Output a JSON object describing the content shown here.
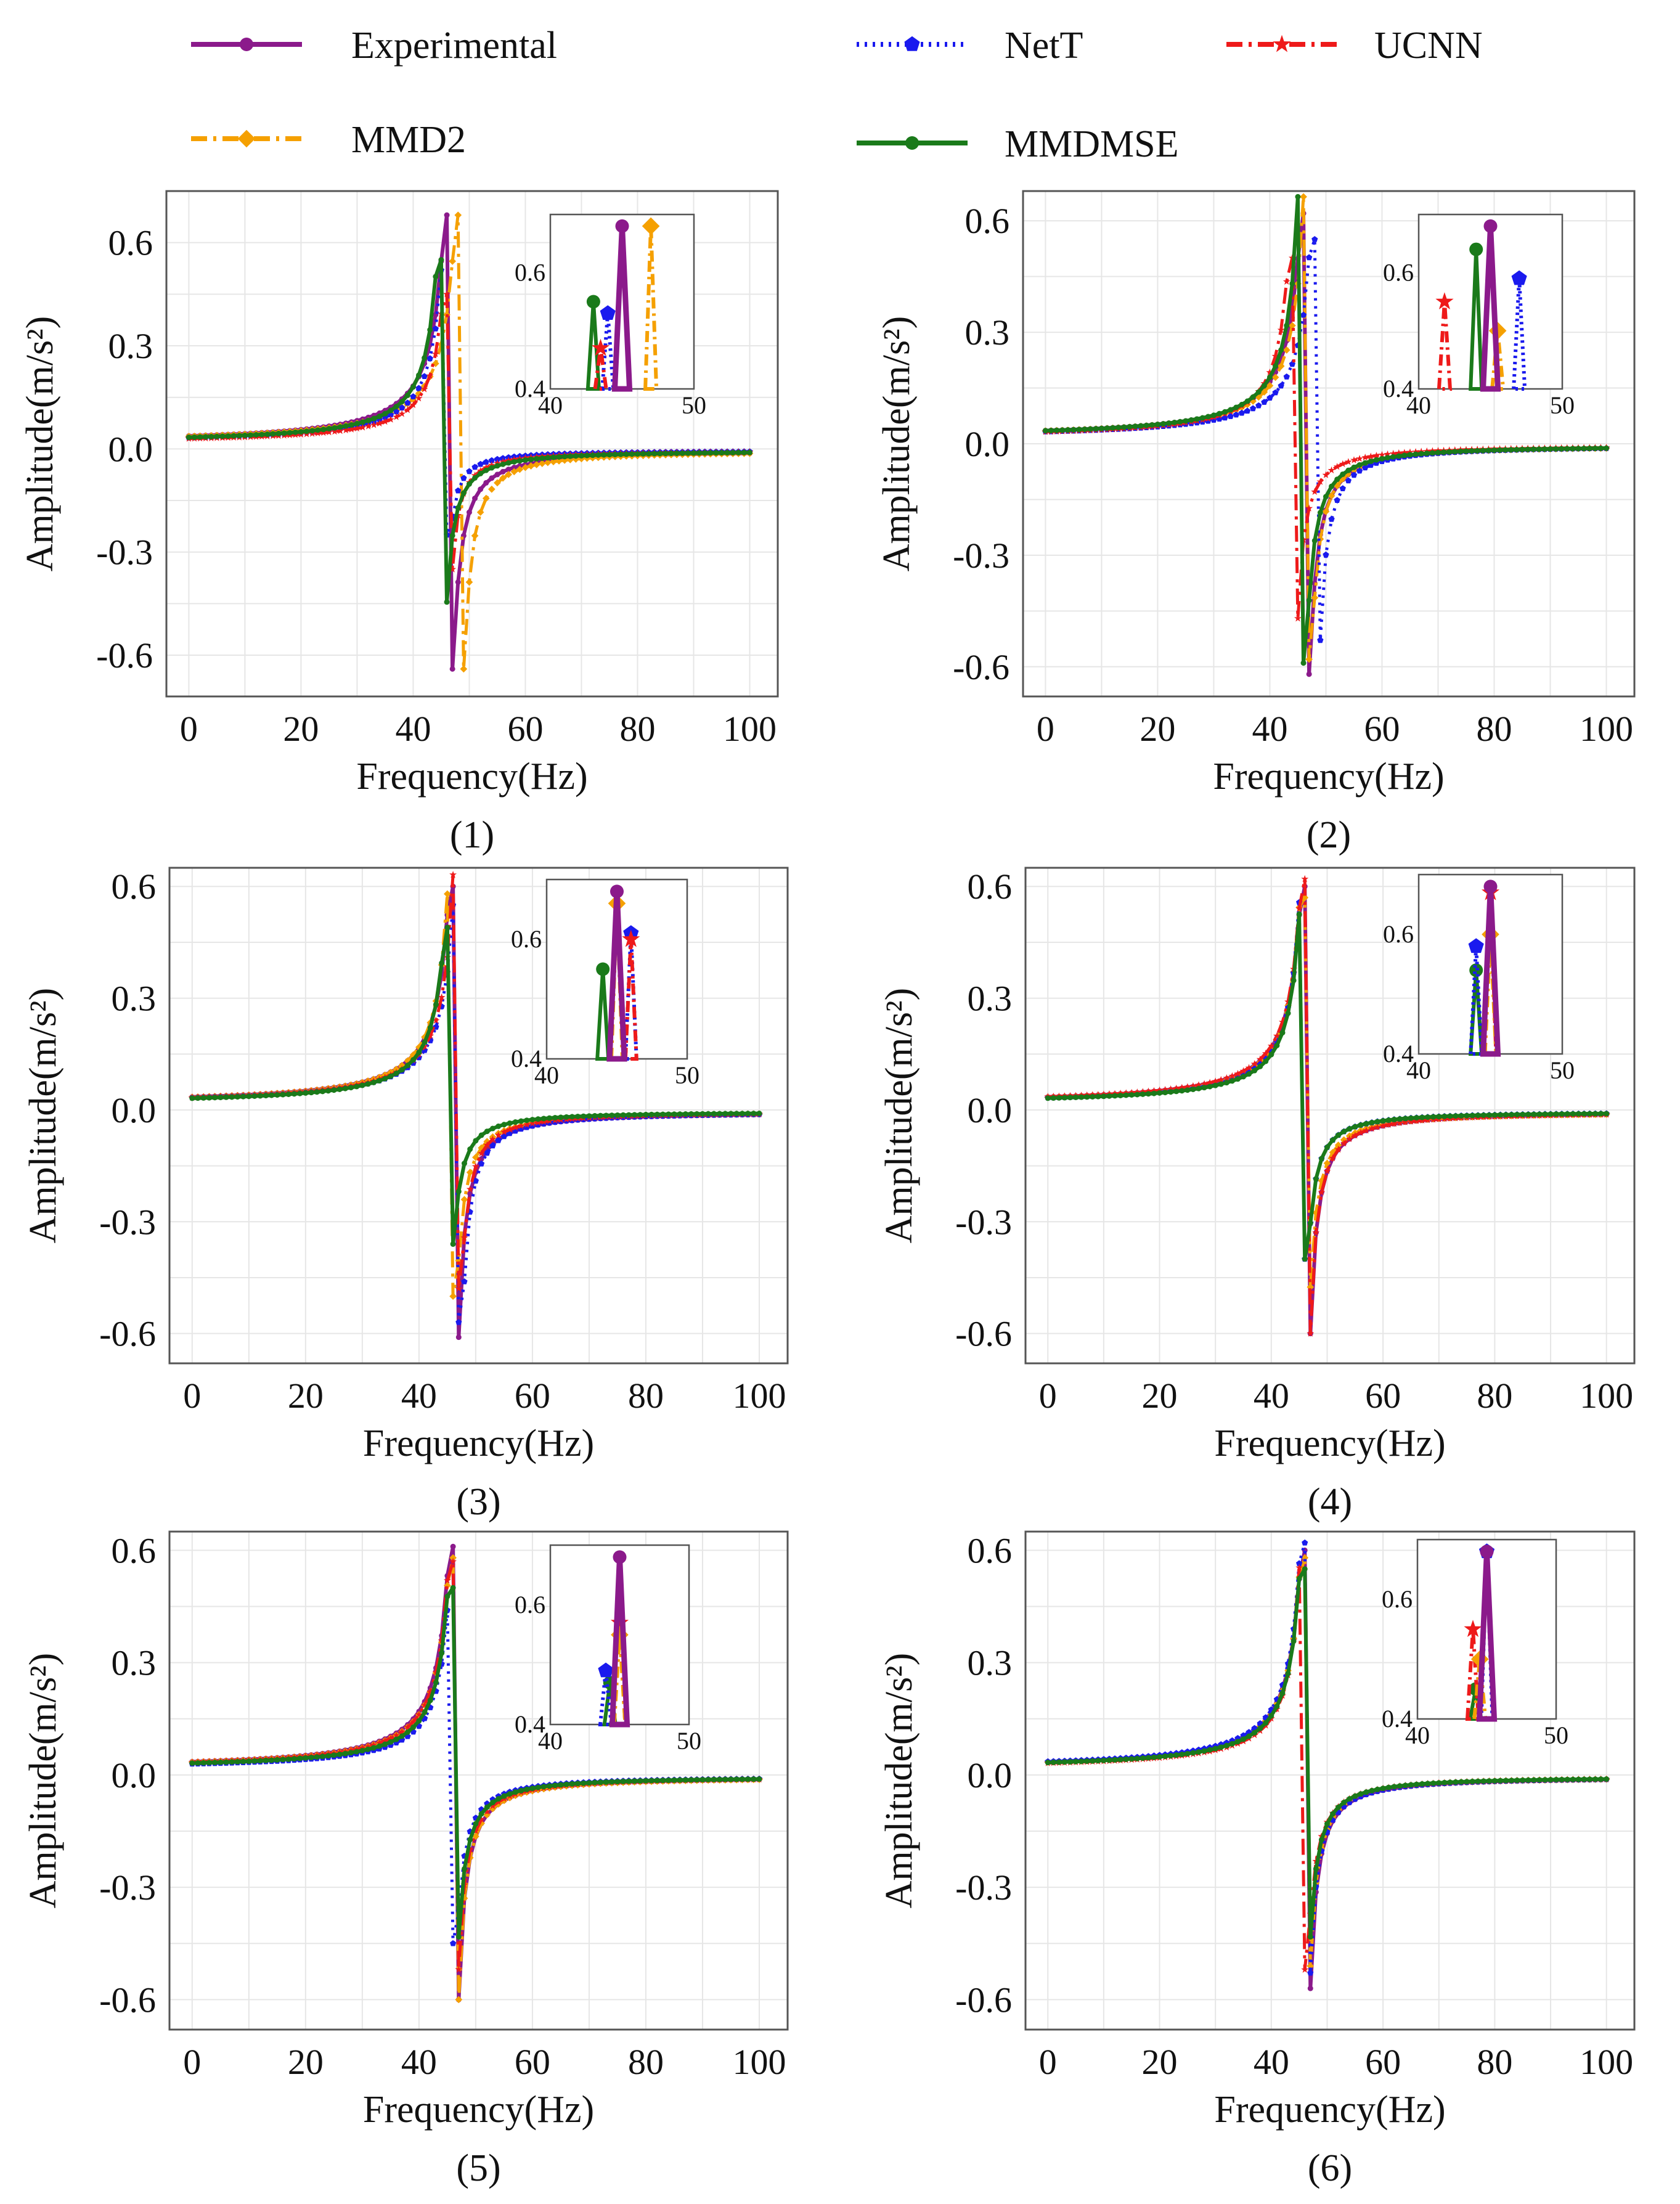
{
  "legend": [
    {
      "name": "Experimental",
      "color": "#8b1a8b",
      "marker": "circle",
      "dash": "solid"
    },
    {
      "name": "NetT",
      "color": "#1a1aee",
      "marker": "pentagon",
      "dash": "dotted"
    },
    {
      "name": "UCNN",
      "color": "#ee1a1a",
      "marker": "star",
      "dash": "dashdot"
    },
    {
      "name": "MMD2",
      "color": "#f5a000",
      "marker": "diamond",
      "dash": "dashdot"
    },
    {
      "name": "MMDMSE",
      "color": "#1a7a1a",
      "marker": "circle",
      "dash": "solid"
    }
  ],
  "chart_data": [
    {
      "type": "line",
      "caption": "(1)",
      "xlabel": "Frequency(Hz)",
      "ylabel": "Amplitude(m/s²)",
      "xlim": [
        -4,
        105
      ],
      "ylim": [
        -0.72,
        0.75
      ],
      "xticks": [
        "0",
        "20",
        "40",
        "60",
        "80",
        "100"
      ],
      "yticks": [
        "-0.6",
        "-0.3",
        "0.0",
        "0.3",
        "0.6"
      ],
      "grid": true,
      "series_params": {
        "Experimental": {
          "f0": 46.5,
          "peak": 0.68,
          "trough": -0.64
        },
        "NetT": {
          "f0": 46.0,
          "peak": 0.52,
          "trough": -0.25
        },
        "UCNN": {
          "f0": 46.3,
          "peak": 0.45,
          "trough": -0.35
        },
        "MMD2": {
          "f0": 48.5,
          "peak": 0.68,
          "trough": -0.64
        },
        "MMDMSE": {
          "f0": 45.2,
          "peak": 0.55,
          "trough": -0.48
        }
      },
      "inset": {
        "xlim": [
          40,
          50
        ],
        "ylim": [
          0.4,
          0.7
        ],
        "xticks": [
          "40",
          "50"
        ],
        "yticks": [
          "0.4",
          "0.6"
        ],
        "points": {
          "Experimental": [
            45,
            0.68
          ],
          "NetT": [
            44,
            0.53
          ],
          "UCNN": [
            43.5,
            0.47
          ],
          "MMD2": [
            47,
            0.68
          ],
          "MMDMSE": [
            43,
            0.55
          ]
        }
      }
    },
    {
      "type": "line",
      "caption": "(2)",
      "xlabel": "Frequency(Hz)",
      "ylabel": "Amplitude(m/s²)",
      "xlim": [
        -4,
        105
      ],
      "ylim": [
        -0.68,
        0.68
      ],
      "xticks": [
        "0",
        "20",
        "40",
        "60",
        "80",
        "100"
      ],
      "yticks": [
        "-0.6",
        "-0.3",
        "0.0",
        "0.3",
        "0.6"
      ],
      "grid": true,
      "series_params": {
        "Experimental": {
          "f0": 46.5,
          "peak": 0.62,
          "trough": -0.62
        },
        "NetT": {
          "f0": 48.2,
          "peak": 0.55,
          "trough": -0.57
        },
        "UCNN": {
          "f0": 44.3,
          "peak": 0.5,
          "trough": -0.47
        },
        "MMD2": {
          "f0": 46.8,
          "peak": 0.6,
          "trough": -0.58
        },
        "MMDMSE": {
          "f0": 45.8,
          "peak": 0.6,
          "trough": -0.59
        }
      },
      "inset": {
        "xlim": [
          40,
          50
        ],
        "ylim": [
          0.4,
          0.7
        ],
        "xticks": [
          "40",
          "50"
        ],
        "yticks": [
          "0.4",
          "0.6"
        ],
        "points": {
          "Experimental": [
            45,
            0.68
          ],
          "NetT": [
            47,
            0.59
          ],
          "UCNN": [
            41.8,
            0.55
          ],
          "MMD2": [
            45.5,
            0.5
          ],
          "MMDMSE": [
            44,
            0.64
          ]
        }
      }
    },
    {
      "type": "line",
      "caption": "(3)",
      "xlabel": "Frequency(Hz)",
      "ylabel": "Amplitude(m/s²)",
      "xlim": [
        -4,
        105
      ],
      "ylim": [
        -0.68,
        0.65
      ],
      "xticks": [
        "0",
        "20",
        "40",
        "60",
        "80",
        "100"
      ],
      "yticks": [
        "-0.6",
        "-0.3",
        "0.0",
        "0.3",
        "0.6"
      ],
      "grid": true,
      "series_params": {
        "Experimental": {
          "f0": 46.3,
          "peak": 0.6,
          "trough": -0.61
        },
        "NetT": {
          "f0": 47.0,
          "peak": 0.55,
          "trough": -0.57
        },
        "UCNN": {
          "f0": 46.8,
          "peak": 0.57,
          "trough": -0.48
        },
        "MMD2": {
          "f0": 46.0,
          "peak": 0.58,
          "trough": -0.5
        },
        "MMDMSE": {
          "f0": 45.5,
          "peak": 0.49,
          "trough": -0.36
        }
      },
      "inset": {
        "xlim": [
          40,
          50
        ],
        "ylim": [
          0.4,
          0.7
        ],
        "xticks": [
          "40",
          "50"
        ],
        "yticks": [
          "0.4",
          "0.6"
        ],
        "points": {
          "Experimental": [
            45,
            0.68
          ],
          "NetT": [
            46,
            0.61
          ],
          "UCNN": [
            46,
            0.6
          ],
          "MMD2": [
            45,
            0.66
          ],
          "MMDMSE": [
            44,
            0.55
          ]
        }
      }
    },
    {
      "type": "line",
      "caption": "(4)",
      "xlabel": "Frequency(Hz)",
      "ylabel": "Amplitude(m/s²)",
      "xlim": [
        -4,
        105
      ],
      "ylim": [
        -0.68,
        0.65
      ],
      "xticks": [
        "0",
        "20",
        "40",
        "60",
        "80",
        "100"
      ],
      "yticks": [
        "-0.6",
        "-0.3",
        "0.0",
        "0.3",
        "0.6"
      ],
      "grid": true,
      "series_params": {
        "Experimental": {
          "f0": 46.3,
          "peak": 0.6,
          "trough": -0.6
        },
        "NetT": {
          "f0": 45.9,
          "peak": 0.53,
          "trough": -0.4
        },
        "UCNN": {
          "f0": 46.3,
          "peak": 0.62,
          "trough": -0.6
        },
        "MMD2": {
          "f0": 46.1,
          "peak": 0.57,
          "trough": -0.55
        },
        "MMDMSE": {
          "f0": 45.9,
          "peak": 0.5,
          "trough": -0.4
        }
      },
      "inset": {
        "xlim": [
          40,
          50
        ],
        "ylim": [
          0.4,
          0.7
        ],
        "xticks": [
          "40",
          "50"
        ],
        "yticks": [
          "0.4",
          "0.6"
        ],
        "points": {
          "Experimental": [
            45,
            0.68
          ],
          "NetT": [
            44,
            0.58
          ],
          "UCNN": [
            45,
            0.67
          ],
          "MMD2": [
            45,
            0.6
          ],
          "MMDMSE": [
            44,
            0.54
          ]
        }
      }
    },
    {
      "type": "line",
      "caption": "(5)",
      "xlabel": "Frequency(Hz)",
      "ylabel": "Amplitude(m/s²)",
      "xlim": [
        -4,
        105
      ],
      "ylim": [
        -0.68,
        0.65
      ],
      "xticks": [
        "0",
        "20",
        "40",
        "60",
        "80",
        "100"
      ],
      "yticks": [
        "-0.6",
        "-0.3",
        "0.0",
        "0.3",
        "0.6"
      ],
      "grid": true,
      "series_params": {
        "Experimental": {
          "f0": 46.3,
          "peak": 0.61,
          "trough": -0.6
        },
        "NetT": {
          "f0": 46.0,
          "peak": 0.44,
          "trough": -0.45
        },
        "UCNN": {
          "f0": 46.2,
          "peak": 0.57,
          "trough": -0.56
        },
        "MMD2": {
          "f0": 46.3,
          "peak": 0.58,
          "trough": -0.6
        },
        "MMDMSE": {
          "f0": 46.1,
          "peak": 0.5,
          "trough": -0.5
        }
      },
      "inset": {
        "xlim": [
          40,
          50
        ],
        "ylim": [
          0.4,
          0.7
        ],
        "xticks": [
          "40",
          "50"
        ],
        "yticks": [
          "0.4",
          "0.6"
        ],
        "points": {
          "Experimental": [
            45,
            0.68
          ],
          "NetT": [
            44,
            0.49
          ],
          "UCNN": [
            45,
            0.57
          ],
          "MMD2": [
            45,
            0.55
          ],
          "MMDMSE": [
            44.3,
            0.47
          ]
        }
      }
    },
    {
      "type": "line",
      "caption": "(6)",
      "xlabel": "Frequency(Hz)",
      "ylabel": "Amplitude(m/s²)",
      "xlim": [
        -4,
        105
      ],
      "ylim": [
        -0.68,
        0.65
      ],
      "xticks": [
        "0",
        "20",
        "40",
        "60",
        "80",
        "100"
      ],
      "yticks": [
        "-0.6",
        "-0.3",
        "0.0",
        "0.3",
        "0.6"
      ],
      "grid": true,
      "series_params": {
        "Experimental": {
          "f0": 46.3,
          "peak": 0.6,
          "trough": -0.57
        },
        "NetT": {
          "f0": 46.2,
          "peak": 0.62,
          "trough": -0.57
        },
        "UCNN": {
          "f0": 45.8,
          "peak": 0.5,
          "trough": -0.52
        },
        "MMD2": {
          "f0": 46.2,
          "peak": 0.58,
          "trough": -0.55
        },
        "MMDMSE": {
          "f0": 46.1,
          "peak": 0.55,
          "trough": -0.5
        }
      },
      "inset": {
        "xlim": [
          40,
          50
        ],
        "ylim": [
          0.4,
          0.7
        ],
        "xticks": [
          "40",
          "50"
        ],
        "yticks": [
          "0.4",
          "0.6"
        ],
        "points": {
          "Experimental": [
            45,
            0.68
          ],
          "NetT": [
            45,
            0.68
          ],
          "UCNN": [
            44,
            0.55
          ],
          "MMD2": [
            44.5,
            0.5
          ],
          "MMDMSE": [
            44.2,
            0.45
          ]
        }
      }
    }
  ]
}
